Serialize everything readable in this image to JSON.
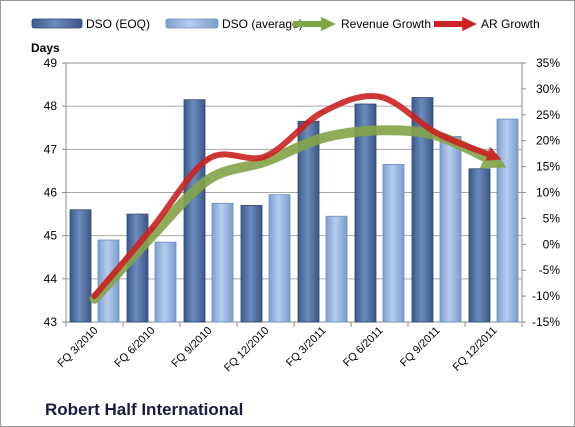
{
  "chart_data": {
    "type": "bar",
    "title": "Robert Half International",
    "ylabel": "Days",
    "categories": [
      "FQ 3/2010",
      "FQ 6/2010",
      "FQ 9/2010",
      "FQ 12/2010",
      "FQ 3/2011",
      "FQ 6/2011",
      "FQ 9/2011",
      "FQ 12/2011"
    ],
    "ylim": [
      43,
      49
    ],
    "yticks": [
      43,
      44,
      45,
      46,
      47,
      48,
      49
    ],
    "y2lim": [
      -15,
      35
    ],
    "y2ticks": [
      "-15%",
      "-10%",
      "-5%",
      "0%",
      "5%",
      "10%",
      "15%",
      "20%",
      "25%",
      "30%",
      "35%"
    ],
    "series": [
      {
        "name": "DSO (EOQ)",
        "kind": "bar",
        "axis": "left",
        "color": "#4a6a9c",
        "values": [
          45.6,
          45.5,
          48.15,
          45.7,
          47.65,
          48.05,
          48.2,
          46.55
        ]
      },
      {
        "name": "DSO (average)",
        "kind": "bar",
        "axis": "left",
        "color": "#8fb0dc",
        "values": [
          44.9,
          44.85,
          45.75,
          45.95,
          45.45,
          46.65,
          47.3,
          47.7
        ]
      },
      {
        "name": "Revenue Growth",
        "kind": "line",
        "axis": "right",
        "unit": "%",
        "color": "#84a44a",
        "values": [
          -10.5,
          1.5,
          12.5,
          16,
          20.5,
          22,
          21,
          16
        ]
      },
      {
        "name": "AR Growth",
        "kind": "line",
        "axis": "right",
        "unit": "%",
        "color": "#cc2222",
        "values": [
          -10,
          3,
          16.5,
          17,
          25.5,
          28.5,
          21.5,
          17
        ]
      }
    ],
    "legend_position": "top",
    "grid": true,
    "colors": {
      "plot_background": "#ffffff",
      "gridline": "#a6a6a6"
    }
  }
}
